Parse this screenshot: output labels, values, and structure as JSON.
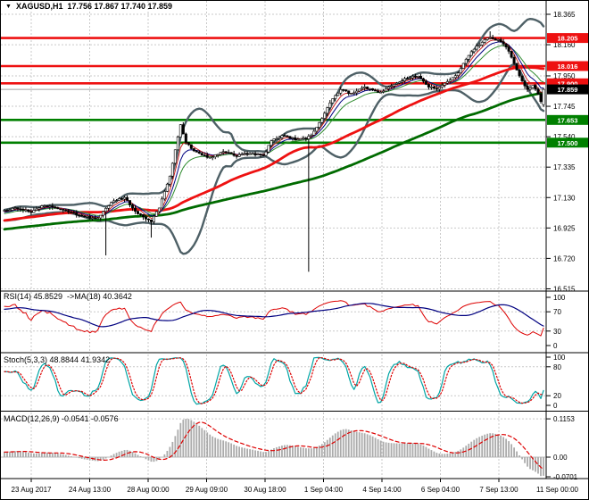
{
  "title": {
    "dropdown_icon": "▼",
    "symbol": "XAGUSD,H1",
    "values": "17.756 17.867 17.740 17.859"
  },
  "chart_data": {
    "type": "candlestick",
    "symbol": "XAGUSD",
    "timeframe": "H1",
    "price_axis": {
      "ticks": [
        "18.365",
        "18.160",
        "17.950",
        "17.745",
        "17.540",
        "17.335",
        "17.130",
        "16.925",
        "16.720",
        "16.515"
      ],
      "min": 16.49,
      "max": 18.4
    },
    "time_axis": {
      "labels": [
        "23 Aug 2017",
        "24 Aug 13:00",
        "28 Aug 00:00",
        "29 Aug 09:00",
        "30 Aug 18:00",
        "1 Sep 04:00",
        "4 Sep 14:00",
        "6 Sep 04:00",
        "7 Sep 13:00",
        "11 Sep 00:00"
      ]
    },
    "levels": {
      "resistance": [
        18.205,
        18.016,
        17.9
      ],
      "support": [
        17.653,
        17.5
      ],
      "current_price": 17.859
    },
    "price_path": {
      "comment": "approximate close-price anchors read from chart; index -120..202, last 203 bars visible",
      "anchors": [
        [
          -120,
          16.8
        ],
        [
          -70,
          16.88
        ],
        [
          -30,
          16.96
        ],
        [
          -5,
          17.02
        ],
        [
          0,
          17.04
        ],
        [
          5,
          17.06
        ],
        [
          10,
          17.03
        ],
        [
          15,
          17.08
        ],
        [
          20,
          17.05
        ],
        [
          25,
          17.03
        ],
        [
          30,
          17.0
        ],
        [
          35,
          16.99
        ],
        [
          40,
          17.1
        ],
        [
          45,
          17.13
        ],
        [
          50,
          17.02
        ],
        [
          55,
          16.97
        ],
        [
          58,
          17.06
        ],
        [
          62,
          17.28
        ],
        [
          66,
          17.62
        ],
        [
          68,
          17.5
        ],
        [
          72,
          17.43
        ],
        [
          77,
          17.4
        ],
        [
          82,
          17.44
        ],
        [
          87,
          17.41
        ],
        [
          92,
          17.43
        ],
        [
          97,
          17.41
        ],
        [
          100,
          17.51
        ],
        [
          104,
          17.55
        ],
        [
          109,
          17.52
        ],
        [
          113,
          17.53
        ],
        [
          115,
          17.55
        ],
        [
          119,
          17.66
        ],
        [
          123,
          17.8
        ],
        [
          126,
          17.86
        ],
        [
          130,
          17.83
        ],
        [
          135,
          17.87
        ],
        [
          141,
          17.84
        ],
        [
          145,
          17.88
        ],
        [
          150,
          17.93
        ],
        [
          155,
          17.95
        ],
        [
          159,
          17.88
        ],
        [
          162,
          17.86
        ],
        [
          166,
          17.91
        ],
        [
          170,
          17.97
        ],
        [
          173,
          18.06
        ],
        [
          176,
          18.13
        ],
        [
          179,
          18.18
        ],
        [
          182,
          18.21
        ],
        [
          185,
          18.19
        ],
        [
          188,
          18.15
        ],
        [
          190,
          18.08
        ],
        [
          192,
          17.99
        ],
        [
          194,
          17.91
        ],
        [
          196,
          17.86
        ],
        [
          198,
          17.89
        ],
        [
          200,
          17.83
        ],
        [
          201,
          17.78
        ],
        [
          202,
          17.86
        ]
      ],
      "spikes": [
        {
          "i": 38,
          "low": 16.74
        },
        {
          "i": 55,
          "low": 16.86
        },
        {
          "i": 114,
          "low": 16.63
        },
        {
          "i": 182,
          "high": 18.25
        }
      ],
      "last_bar": {
        "open": 17.756,
        "high": 17.867,
        "low": 17.74,
        "close": 17.859
      }
    },
    "moving_averages": {
      "thin_red_ema": 5,
      "thin_navy_ema": 8,
      "thin_green_ema": 13,
      "thick_red_sma": 50,
      "thick_green_sma": 110,
      "bollinger": {
        "period": 20,
        "deviation": 2
      }
    },
    "indicators": {
      "rsi": {
        "label": "RSI(14) 45.8529  ->MA(18) 40.3642",
        "period": 14,
        "ma_period": 18,
        "ticks": [
          100,
          70,
          30,
          0
        ],
        "guides": [
          70,
          30
        ],
        "current": 45.8529,
        "current_ma": 40.3642
      },
      "stoch": {
        "label": "Stoch(5,3,3) 48.8844 41.9342",
        "k": 5,
        "d": 3,
        "slowing": 3,
        "ticks": [
          100,
          80,
          20,
          0
        ],
        "guides": [
          80,
          20
        ],
        "current_k": 48.8844,
        "current_d": 41.9342
      },
      "macd": {
        "label": "MACD(12,26,9) -0.0541 -0.0576",
        "fast": 12,
        "slow": 26,
        "signal": 9,
        "ticks": [
          {
            "label": "0.1153",
            "value": 0.1153
          },
          {
            "label": "0.00",
            "value": 0
          },
          {
            "label": "-0.0701",
            "value": -0.0701
          }
        ],
        "current": -0.0541,
        "current_signal": -0.0576
      }
    },
    "colors": {
      "background": "#ffffff",
      "grid": "#c9c9c9",
      "border": "#000000",
      "candle": "#000000",
      "bull_fill": "#ffffff",
      "bear_fill": "#000000",
      "bollinger": "#4e6066",
      "ma_thick_red": "#ee1111",
      "ma_thick_green": "#006b00",
      "ma_thin_red": "#cc2222",
      "ma_thin_navy": "#000080",
      "ma_thin_green": "#2e8b2e",
      "level_red": "#ee1111",
      "level_green": "#008000",
      "current_price_line": "#a0a0a0",
      "badge_black": "#000000",
      "badge_text": "#ffffff",
      "rsi_line": "#dd0000",
      "rsi_ma": "#000080",
      "stoch_k": "#00a5a5",
      "stoch_d": "#dd0000",
      "macd_hist": "#ababab",
      "macd_signal": "#dd0000",
      "text": "#000000"
    }
  }
}
